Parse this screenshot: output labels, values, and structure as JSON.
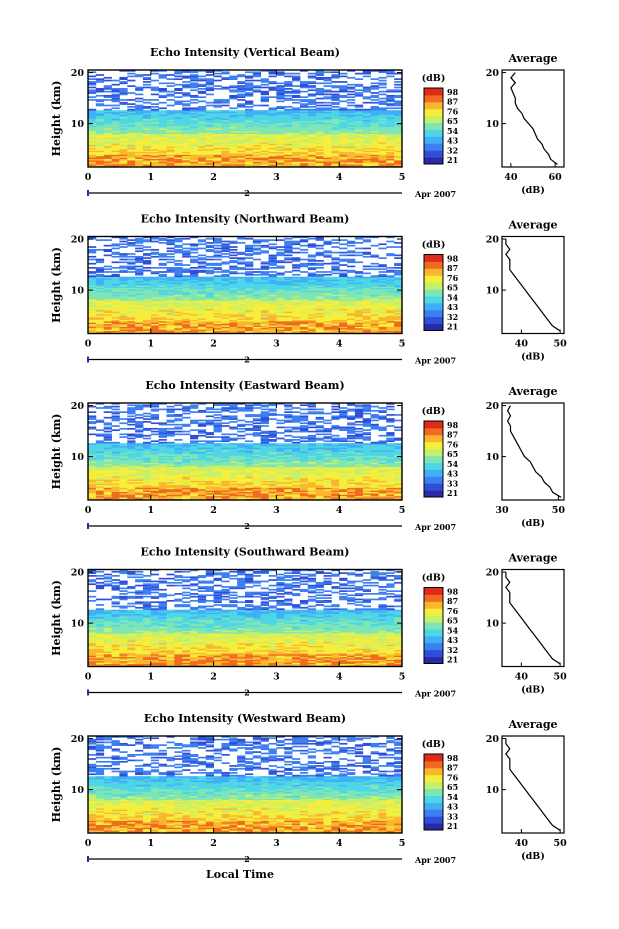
{
  "figure": {
    "xlabel": "Local Time",
    "date_label": "Apr 2007",
    "day_marker": "2",
    "ylabel": "Height (km)",
    "cb_label": "(dB)",
    "avg_title": "Average",
    "avg_xlabel": "(dB)"
  },
  "chart_data": [
    {
      "type": "heatmap",
      "title": "Echo Intensity (Vertical Beam)",
      "x_ticks": [
        "0",
        "1",
        "2",
        "3",
        "4",
        "5"
      ],
      "y_ticks": [
        "10",
        "20"
      ],
      "xlim": [
        0,
        5
      ],
      "ylim": [
        1.5,
        20.5
      ],
      "colorbar": {
        "label": "(dB)",
        "ticks": [
          "98",
          "87",
          "76",
          "65",
          "54",
          "43",
          "32",
          "21"
        ]
      },
      "profile": {
        "title": "Average",
        "xlabel": "(dB)",
        "x_ticks": [
          "40",
          "60"
        ],
        "xlim": [
          36,
          64
        ],
        "y_ticks": [
          "10",
          "20"
        ],
        "height_km": [
          2,
          3,
          4,
          5,
          6,
          7,
          8,
          9,
          10,
          11,
          12,
          13,
          14,
          15,
          16,
          17,
          18,
          19,
          20
        ],
        "mean_db": [
          61,
          58,
          57,
          55,
          54,
          52,
          51,
          50,
          48,
          46,
          45,
          43,
          42,
          42,
          41,
          40,
          42,
          40,
          42
        ]
      }
    },
    {
      "type": "heatmap",
      "title": "Echo Intensity (Northward Beam)",
      "x_ticks": [
        "0",
        "1",
        "2",
        "3",
        "4",
        "5"
      ],
      "y_ticks": [
        "10",
        "20"
      ],
      "xlim": [
        0,
        5
      ],
      "ylim": [
        1.5,
        20.5
      ],
      "colorbar": {
        "label": "(dB)",
        "ticks": [
          "98",
          "87",
          "76",
          "65",
          "54",
          "43",
          "32",
          "21"
        ]
      },
      "profile": {
        "title": "Average",
        "xlabel": "(dB)",
        "x_ticks": [
          "40",
          "50"
        ],
        "xlim": [
          35,
          51
        ],
        "y_ticks": [
          "10",
          "20"
        ],
        "height_km": [
          2,
          3,
          4,
          5,
          6,
          7,
          8,
          9,
          10,
          11,
          12,
          13,
          14,
          15,
          16,
          17,
          18,
          19,
          20
        ],
        "mean_db": [
          50,
          48,
          47,
          46,
          45,
          44,
          43,
          42,
          41,
          40,
          39,
          38,
          37,
          37,
          37,
          36,
          37,
          36,
          36
        ]
      }
    },
    {
      "type": "heatmap",
      "title": "Echo Intensity (Eastward Beam)",
      "x_ticks": [
        "0",
        "1",
        "2",
        "3",
        "4",
        "5"
      ],
      "y_ticks": [
        "10",
        "20"
      ],
      "xlim": [
        0,
        5
      ],
      "ylim": [
        1.5,
        20.5
      ],
      "colorbar": {
        "label": "(dB)",
        "ticks": [
          "98",
          "87",
          "76",
          "65",
          "54",
          "43",
          "33",
          "21"
        ]
      },
      "profile": {
        "title": "Average",
        "xlabel": "(dB)",
        "x_ticks": [
          "30",
          "50"
        ],
        "xlim": [
          30,
          52
        ],
        "y_ticks": [
          "10",
          "20"
        ],
        "height_km": [
          2,
          3,
          4,
          5,
          6,
          7,
          8,
          9,
          10,
          11,
          12,
          13,
          14,
          15,
          16,
          17,
          18,
          19,
          20
        ],
        "mean_db": [
          51,
          48,
          47,
          45,
          44,
          42,
          41,
          40,
          38,
          37,
          36,
          35,
          34,
          33,
          33,
          32,
          33,
          32,
          33
        ]
      }
    },
    {
      "type": "heatmap",
      "title": "Echo Intensity (Southward Beam)",
      "x_ticks": [
        "0",
        "1",
        "2",
        "3",
        "4",
        "5"
      ],
      "y_ticks": [
        "10",
        "20"
      ],
      "xlim": [
        0,
        5
      ],
      "ylim": [
        1.5,
        20.5
      ],
      "colorbar": {
        "label": "(dB)",
        "ticks": [
          "98",
          "87",
          "76",
          "65",
          "54",
          "43",
          "32",
          "21"
        ]
      },
      "profile": {
        "title": "Average",
        "xlabel": "(dB)",
        "x_ticks": [
          "40",
          "50"
        ],
        "xlim": [
          35,
          51
        ],
        "y_ticks": [
          "10",
          "20"
        ],
        "height_km": [
          2,
          3,
          4,
          5,
          6,
          7,
          8,
          9,
          10,
          11,
          12,
          13,
          14,
          15,
          16,
          17,
          18,
          19,
          20
        ],
        "mean_db": [
          50,
          48,
          47,
          46,
          45,
          44,
          43,
          42,
          41,
          40,
          39,
          38,
          37,
          37,
          37,
          36,
          37,
          36,
          36
        ]
      }
    },
    {
      "type": "heatmap",
      "title": "Echo Intensity (Westward Beam)",
      "x_ticks": [
        "0",
        "1",
        "2",
        "3",
        "4",
        "5"
      ],
      "y_ticks": [
        "10",
        "20"
      ],
      "xlim": [
        0,
        5
      ],
      "ylim": [
        1.5,
        20.5
      ],
      "colorbar": {
        "label": "(dB)",
        "ticks": [
          "98",
          "87",
          "76",
          "65",
          "54",
          "43",
          "33",
          "21"
        ]
      },
      "profile": {
        "title": "Average",
        "xlabel": "(dB)",
        "x_ticks": [
          "40",
          "50"
        ],
        "xlim": [
          35,
          51
        ],
        "y_ticks": [
          "10",
          "20"
        ],
        "height_km": [
          2,
          3,
          4,
          5,
          6,
          7,
          8,
          9,
          10,
          11,
          12,
          13,
          14,
          15,
          16,
          17,
          18,
          19,
          20
        ],
        "mean_db": [
          50,
          48,
          47,
          46,
          45,
          44,
          43,
          42,
          41,
          40,
          39,
          38,
          37,
          37,
          37,
          36,
          37,
          36,
          36
        ]
      }
    }
  ]
}
